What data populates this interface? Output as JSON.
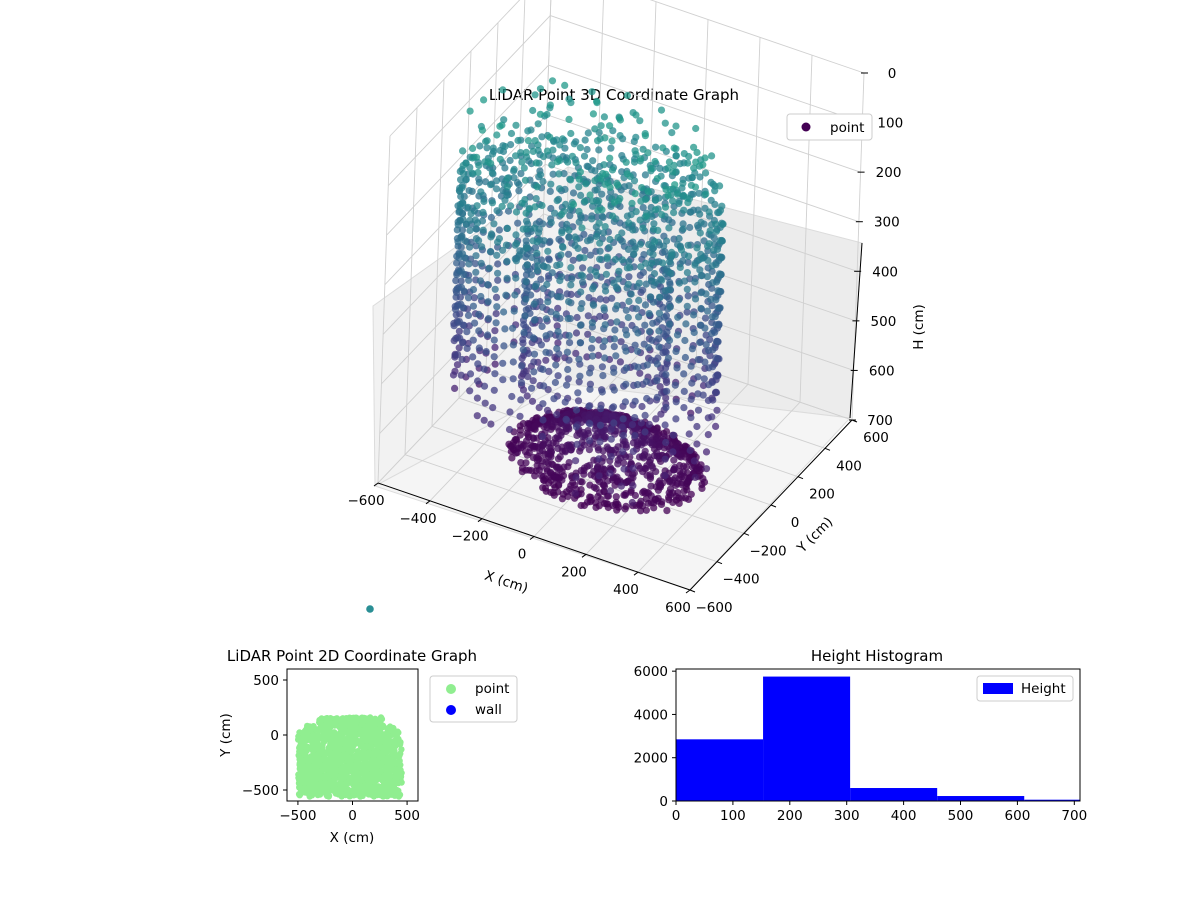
{
  "chart_data": [
    {
      "type": "scatter",
      "projection": "3d",
      "title": "LiDAR Point 3D Coordinate Graph",
      "xlabel": "X (cm)",
      "ylabel": "Y (cm)",
      "zlabel": "H (cm)",
      "xlim": [
        -600,
        600
      ],
      "ylim": [
        -600,
        600
      ],
      "zlim": [
        700,
        0
      ],
      "x_ticks": [
        -600,
        -400,
        -200,
        0,
        200,
        400,
        600
      ],
      "x_tick_labels": [
        "−600",
        "−400",
        "−200",
        "0",
        "200",
        "400",
        "600"
      ],
      "y_ticks": [
        -600,
        -400,
        -200,
        0,
        200,
        400,
        600
      ],
      "y_tick_labels": [
        "−600",
        "−400",
        "−200",
        "0",
        "200",
        "400",
        "600"
      ],
      "z_ticks": [
        0,
        100,
        200,
        300,
        400,
        500,
        600,
        700
      ],
      "z_tick_labels": [
        "0",
        "100",
        "200",
        "300",
        "400",
        "500",
        "600",
        "700"
      ],
      "z_inverted": true,
      "grid": true,
      "colormap": "viridis",
      "legend": {
        "entries": [
          {
            "label": "point",
            "color": "#440154"
          }
        ],
        "placement": "upper-right"
      },
      "series": [
        {
          "name": "point",
          "description_points": "room-shaped point cloud: upright wall columns ringing the floor, dense ceiling dome",
          "x_range": [
            -500,
            450
          ],
          "y_range": [
            -550,
            150
          ],
          "h_range": [
            0,
            700
          ]
        }
      ],
      "outlier_points": [
        {
          "x": -300,
          "y": -600,
          "h": 900
        }
      ]
    },
    {
      "type": "scatter",
      "title": "LiDAR Point 2D Coordinate Graph",
      "xlabel": "X (cm)",
      "ylabel": "Y (cm)",
      "xlim": [
        -600,
        600
      ],
      "ylim": [
        -600,
        600
      ],
      "x_ticks": [
        -500,
        0,
        500
      ],
      "x_tick_labels": [
        "−500",
        "0",
        "500"
      ],
      "y_ticks": [
        -500,
        0,
        500
      ],
      "y_tick_labels": [
        "−500",
        "0",
        "500"
      ],
      "legend": {
        "entries": [
          {
            "label": "point",
            "color": "#90ee90"
          },
          {
            "label": "wall",
            "color": "#0000ff"
          }
        ],
        "placement": "outside-right"
      },
      "series": [
        {
          "name": "point",
          "color": "#90ee90",
          "x_range": [
            -500,
            450
          ],
          "y_range": [
            -560,
            160
          ]
        },
        {
          "name": "wall",
          "color": "#0000ff",
          "values": []
        }
      ]
    },
    {
      "type": "bar",
      "subtype": "histogram",
      "title": "Height Histogram",
      "xlim": [
        0,
        710
      ],
      "ylim": [
        0,
        6100
      ],
      "x_ticks": [
        0,
        100,
        200,
        300,
        400,
        500,
        600,
        700
      ],
      "x_tick_labels": [
        "0",
        "100",
        "200",
        "300",
        "400",
        "500",
        "600",
        "700"
      ],
      "y_ticks": [
        0,
        2000,
        4000,
        6000
      ],
      "y_tick_labels": [
        "0",
        "2000",
        "4000",
        "6000"
      ],
      "color": "#0000ff",
      "legend": {
        "entries": [
          {
            "label": "Height",
            "color": "#0000ff"
          }
        ],
        "placement": "upper-right"
      },
      "bin_edges": [
        0,
        153,
        306,
        459,
        612,
        765
      ],
      "values": [
        2850,
        5750,
        600,
        230,
        60
      ]
    }
  ]
}
